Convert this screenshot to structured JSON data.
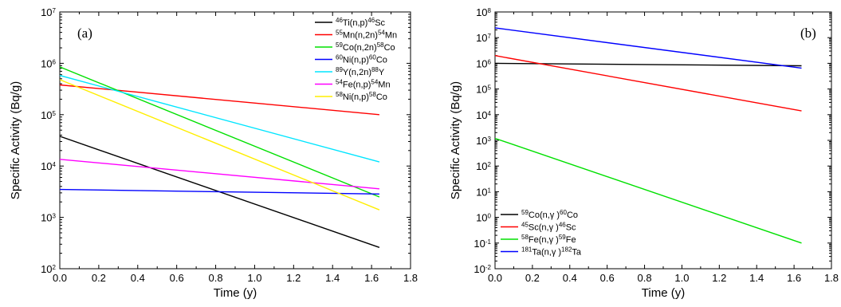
{
  "chart_data": [
    {
      "type": "line",
      "panel_label": "(a)",
      "xlabel": "Time (y)",
      "ylabel": "Specific Activity (Bq/g)",
      "xlim": [
        0.0,
        1.8
      ],
      "yscale": "log",
      "ylim": [
        100,
        10000000
      ],
      "x_ticks": [
        "0.0",
        "0.2",
        "0.4",
        "0.6",
        "0.8",
        "1.0",
        "1.2",
        "1.4",
        "1.6",
        "1.8"
      ],
      "y_ticks": [
        {
          "value": 100,
          "base": "10",
          "exp": "2"
        },
        {
          "value": 1000,
          "base": "10",
          "exp": "3"
        },
        {
          "value": 10000,
          "base": "10",
          "exp": "4"
        },
        {
          "value": 100000,
          "base": "10",
          "exp": "5"
        },
        {
          "value": 1000000,
          "base": "10",
          "exp": "6"
        },
        {
          "value": 10000000,
          "base": "10",
          "exp": "7"
        }
      ],
      "grid": false,
      "legend_position": "top-right",
      "series": [
        {
          "name": "46Ti(n,p)46Sc",
          "label": [
            {
              "t": "46",
              "sup": true
            },
            {
              "t": "Ti(n,p)"
            },
            {
              "t": "46",
              "sup": true
            },
            {
              "t": "Sc"
            }
          ],
          "color": "#000000",
          "x": [
            0,
            1.64
          ],
          "y": [
            38000,
            260
          ]
        },
        {
          "name": "55Mn(n,2n)54Mn",
          "label": [
            {
              "t": "55",
              "sup": true
            },
            {
              "t": "Mn(n,2n)"
            },
            {
              "t": "54",
              "sup": true
            },
            {
              "t": "Mn"
            }
          ],
          "color": "#ff0000",
          "x": [
            0,
            1.64
          ],
          "y": [
            380000,
            100000
          ]
        },
        {
          "name": "59Co(n,2n)58Co",
          "label": [
            {
              "t": "59",
              "sup": true
            },
            {
              "t": "Co(n,2n)"
            },
            {
              "t": "58",
              "sup": true
            },
            {
              "t": "Co"
            }
          ],
          "color": "#00e000",
          "x": [
            0,
            1.64
          ],
          "y": [
            850000,
            2500
          ]
        },
        {
          "name": "60Ni(n,p)60Co",
          "label": [
            {
              "t": "60",
              "sup": true
            },
            {
              "t": "Ni(n,p)"
            },
            {
              "t": "60",
              "sup": true
            },
            {
              "t": "Co"
            }
          ],
          "color": "#0000ff",
          "x": [
            0,
            1.64
          ],
          "y": [
            3500,
            2850
          ]
        },
        {
          "name": "89Y(n,2n)88Y",
          "label": [
            {
              "t": "89",
              "sup": true
            },
            {
              "t": "Y(n,2n)"
            },
            {
              "t": "88",
              "sup": true
            },
            {
              "t": "Y"
            }
          ],
          "color": "#00e5ff",
          "x": [
            0,
            1.64
          ],
          "y": [
            580000,
            12000
          ]
        },
        {
          "name": "54Fe(n,p)54Mn",
          "label": [
            {
              "t": "54",
              "sup": true
            },
            {
              "t": "Fe(n,p)"
            },
            {
              "t": "54",
              "sup": true
            },
            {
              "t": "Mn"
            }
          ],
          "color": "#ff00ff",
          "x": [
            0,
            1.64
          ],
          "y": [
            13500,
            3600
          ]
        },
        {
          "name": "58Ni(n,p)58Co",
          "label": [
            {
              "t": "58",
              "sup": true
            },
            {
              "t": "Ni(n,p)"
            },
            {
              "t": "58",
              "sup": true
            },
            {
              "t": "Co"
            }
          ],
          "color": "#ffee00",
          "x": [
            0,
            1.64
          ],
          "y": [
            480000,
            1400
          ]
        }
      ]
    },
    {
      "type": "line",
      "panel_label": "(b)",
      "xlabel": "Time (y)",
      "ylabel": "Specific Activity (Bq/g)",
      "xlim": [
        0.0,
        1.8
      ],
      "yscale": "log",
      "ylim": [
        0.01,
        100000000
      ],
      "x_ticks": [
        "0.0",
        "0.2",
        "0.4",
        "0.6",
        "0.8",
        "1.0",
        "1.2",
        "1.4",
        "1.6",
        "1.8"
      ],
      "y_ticks": [
        {
          "value": 0.01,
          "base": "10",
          "exp": "-2"
        },
        {
          "value": 0.1,
          "base": "10",
          "exp": "-1"
        },
        {
          "value": 1,
          "base": "10",
          "exp": "0"
        },
        {
          "value": 10,
          "base": "10",
          "exp": "1"
        },
        {
          "value": 100,
          "base": "10",
          "exp": "2"
        },
        {
          "value": 1000,
          "base": "10",
          "exp": "3"
        },
        {
          "value": 10000,
          "base": "10",
          "exp": "4"
        },
        {
          "value": 100000,
          "base": "10",
          "exp": "5"
        },
        {
          "value": 1000000,
          "base": "10",
          "exp": "6"
        },
        {
          "value": 10000000,
          "base": "10",
          "exp": "7"
        },
        {
          "value": 100000000,
          "base": "10",
          "exp": "8"
        }
      ],
      "grid": false,
      "legend_position": "bottom-left",
      "series": [
        {
          "name": "59Co(n,γ)60Co",
          "label": [
            {
              "t": "59",
              "sup": true
            },
            {
              "t": "Co(n,γ )"
            },
            {
              "t": "60",
              "sup": true
            },
            {
              "t": "Co"
            }
          ],
          "color": "#000000",
          "x": [
            0,
            1.64
          ],
          "y": [
            1000000,
            800000
          ]
        },
        {
          "name": "45Sc(n,γ)46Sc",
          "label": [
            {
              "t": "45",
              "sup": true
            },
            {
              "t": "Sc(n,γ )"
            },
            {
              "t": "46",
              "sup": true
            },
            {
              "t": "Sc"
            }
          ],
          "color": "#ff0000",
          "x": [
            0,
            1.64
          ],
          "y": [
            2000000,
            14000
          ]
        },
        {
          "name": "58Fe(n,γ)59Fe",
          "label": [
            {
              "t": "58",
              "sup": true
            },
            {
              "t": "Fe(n,γ )"
            },
            {
              "t": "59",
              "sup": true
            },
            {
              "t": "Fe"
            }
          ],
          "color": "#00e000",
          "x": [
            0,
            1.64
          ],
          "y": [
            1200,
            0.1
          ]
        },
        {
          "name": "181Ta(n,γ)182Ta",
          "label": [
            {
              "t": "181",
              "sup": true
            },
            {
              "t": "Ta(n,γ )"
            },
            {
              "t": "182",
              "sup": true
            },
            {
              "t": "Ta"
            }
          ],
          "color": "#0000ff",
          "x": [
            0,
            1.64
          ],
          "y": [
            24000000,
            650000
          ]
        }
      ]
    }
  ]
}
